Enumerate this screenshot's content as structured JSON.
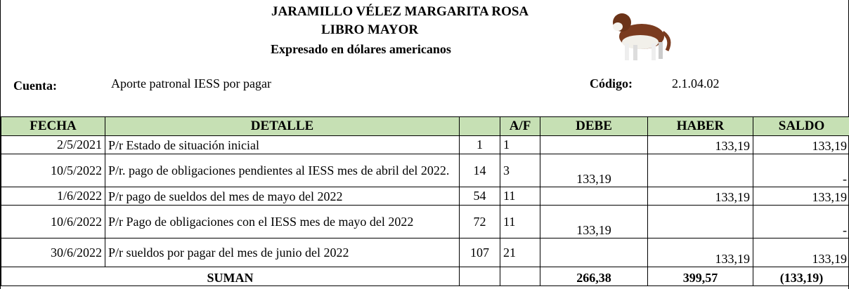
{
  "header": {
    "name": "JARAMILLO VÉLEZ MARGARITA ROSA",
    "book": "LIBRO MAYOR",
    "subtitle": "Expresado en dólares americanos"
  },
  "account": {
    "label": "Cuenta:",
    "value": "Aporte patronal IESS por pagar",
    "code_label": "Código:",
    "code": "2.1.04.02"
  },
  "table": {
    "columns": {
      "fecha": "FECHA",
      "detalle": "DETALLE",
      "af": "A/F",
      "debe": "DEBE",
      "haber": "HABER",
      "saldo": "SALDO"
    },
    "rows": [
      {
        "fecha": "2/5/2021",
        "detalle": "P/r Estado de situación inicial",
        "ref": "1",
        "af": "1",
        "haber": "133,19",
        "saldo": "133,19"
      },
      {
        "fecha": "10/5/2022",
        "detalle": "P/r. pago de obligaciones pendientes al IESS mes de abril del 2022.",
        "ref": "14",
        "af": "3",
        "debe": "133,19",
        "saldo": "-"
      },
      {
        "fecha": "1/6/2022",
        "detalle": "P/r pago de sueldos del mes de mayo del 2022",
        "ref": "54",
        "af": "11",
        "haber": "133,19",
        "saldo": "133,19"
      },
      {
        "fecha": "10/6/2022",
        "detalle": "P/r Pago de obligaciones con el IESS mes de mayo del 2022",
        "ref": "72",
        "af": "11",
        "debe": "133,19",
        "saldo": "-"
      },
      {
        "fecha": "30/6/2022",
        "detalle": "P/r sueldos por pagar del mes de junio del 2022",
        "ref": "107",
        "af": "21",
        "haber": "133,19",
        "saldo": "133,19"
      }
    ],
    "totals": {
      "label": "SUMAN",
      "debe": "266,38",
      "haber": "399,57",
      "saldo": "(133,19)"
    }
  }
}
